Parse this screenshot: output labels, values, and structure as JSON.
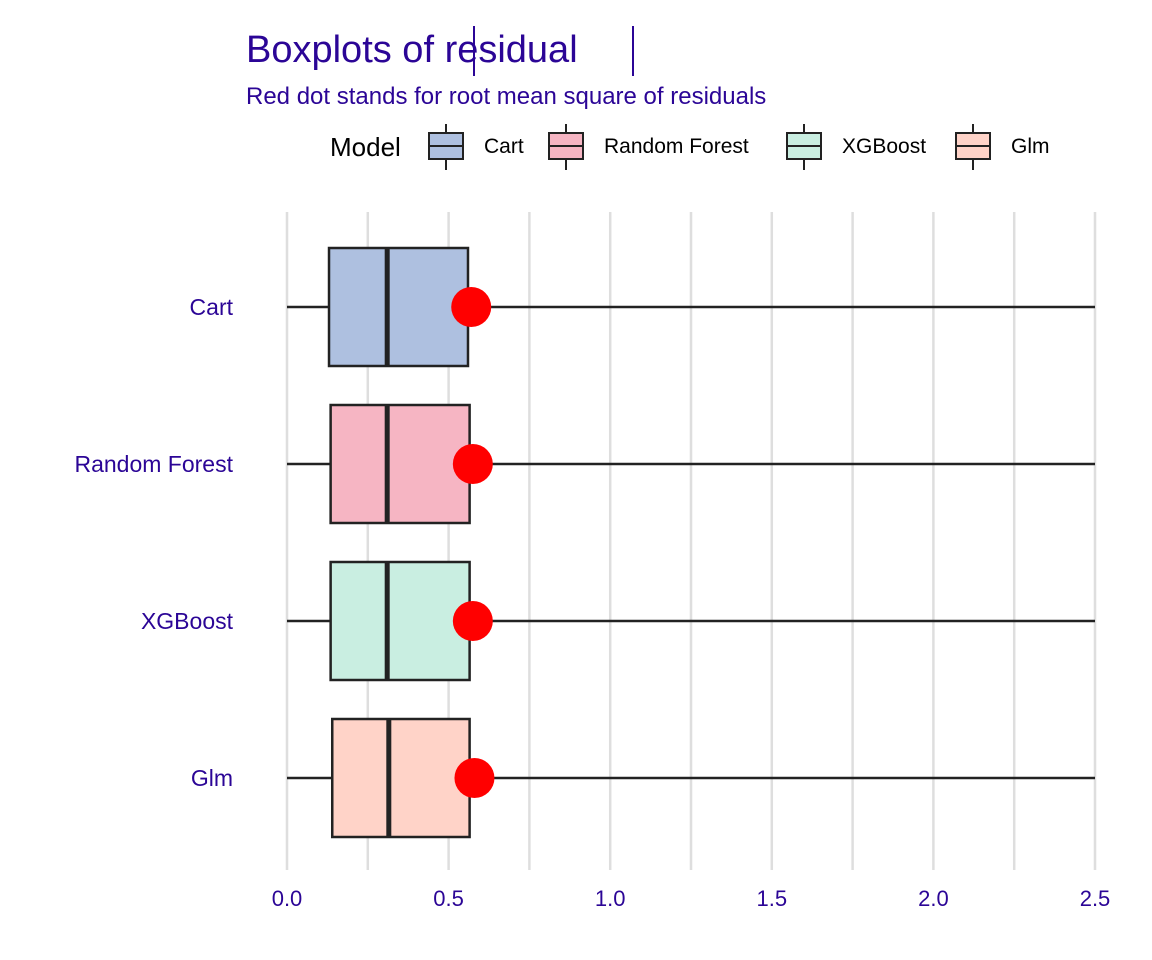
{
  "chart_data": {
    "type": "boxplot",
    "title_prefix": "Boxplots of ",
    "title_var": "residual",
    "subtitle": "Red dot stands for root mean square of residuals",
    "legend": {
      "title": "Model",
      "position": "top",
      "entries": [
        {
          "label": "Cart",
          "color": "#AEC0E0"
        },
        {
          "label": "Random Forest",
          "color": "#F6B5C3"
        },
        {
          "label": "XGBoost",
          "color": "#C9EEE1"
        },
        {
          "label": "Glm",
          "color": "#FFD3C8"
        }
      ]
    },
    "x_axis": {
      "lim": [
        0,
        2.5
      ],
      "ticks": [
        0,
        0.5,
        1.0,
        1.5,
        2.0,
        2.5
      ],
      "tick_labels": [
        "0.0",
        "0.5",
        "1.0",
        "1.5",
        "2.0",
        "2.5"
      ],
      "minor_ticks": [
        0.25,
        0.75,
        1.25,
        1.75,
        2.25
      ],
      "grid": true
    },
    "categories": [
      "Cart",
      "Random Forest",
      "XGBoost",
      "Glm"
    ],
    "series": [
      {
        "name": "Cart",
        "whisker_low": 0.0,
        "q1": 0.13,
        "median": 0.31,
        "q3": 0.56,
        "whisker_high": 2.5,
        "rmse": 0.57,
        "color": "#AEC0E0"
      },
      {
        "name": "Random Forest",
        "whisker_low": 0.0,
        "q1": 0.135,
        "median": 0.31,
        "q3": 0.565,
        "whisker_high": 2.5,
        "rmse": 0.575,
        "color": "#F6B5C3"
      },
      {
        "name": "XGBoost",
        "whisker_low": 0.0,
        "q1": 0.135,
        "median": 0.31,
        "q3": 0.565,
        "whisker_high": 2.5,
        "rmse": 0.575,
        "color": "#C9EEE1"
      },
      {
        "name": "Glm",
        "whisker_low": 0.0,
        "q1": 0.14,
        "median": 0.315,
        "q3": 0.565,
        "whisker_high": 2.5,
        "rmse": 0.58,
        "color": "#FFD3C8"
      }
    ],
    "rmse_dot_color": "#FF0000",
    "text_color": "#2B0596"
  }
}
